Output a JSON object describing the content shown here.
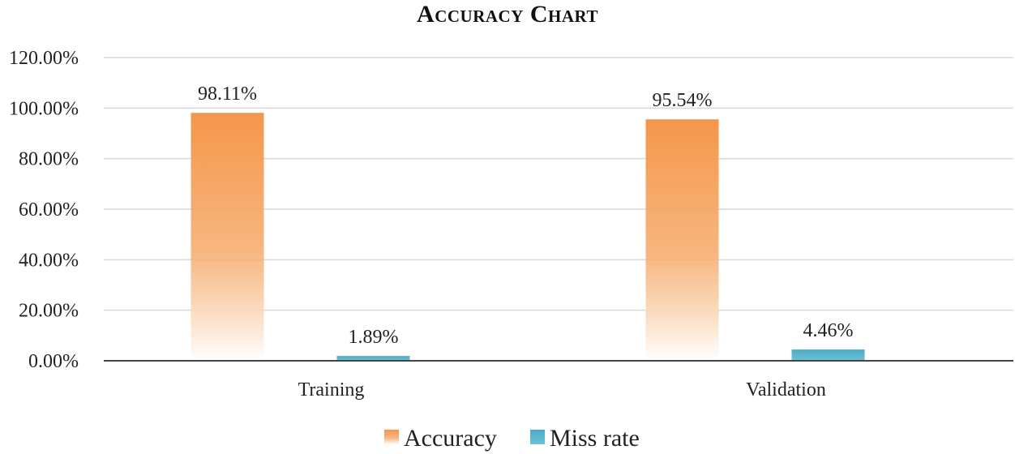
{
  "chart_data": {
    "type": "bar",
    "title": "Accuracy Chart",
    "categories": [
      "Training",
      "Validation"
    ],
    "series": [
      {
        "name": "Accuracy",
        "values": [
          98.11,
          95.54
        ],
        "data_labels": [
          "98.11%",
          "95.54%"
        ],
        "color": "#f4964a",
        "style": "gradient-fade-to-white"
      },
      {
        "name": "Miss rate",
        "values": [
          1.89,
          4.46
        ],
        "data_labels": [
          "1.89%",
          "4.46%"
        ],
        "color": "#4bacc6",
        "style": "solid"
      }
    ],
    "ylim": [
      0,
      120
    ],
    "y_ticks": [
      0,
      20,
      40,
      60,
      80,
      100,
      120
    ],
    "y_tick_labels": [
      "0.00%",
      "20.00%",
      "40.00%",
      "60.00%",
      "80.00%",
      "100.00%",
      "120.00%"
    ],
    "xlabel": "",
    "ylabel": "",
    "grid": true,
    "legend_position": "bottom"
  }
}
